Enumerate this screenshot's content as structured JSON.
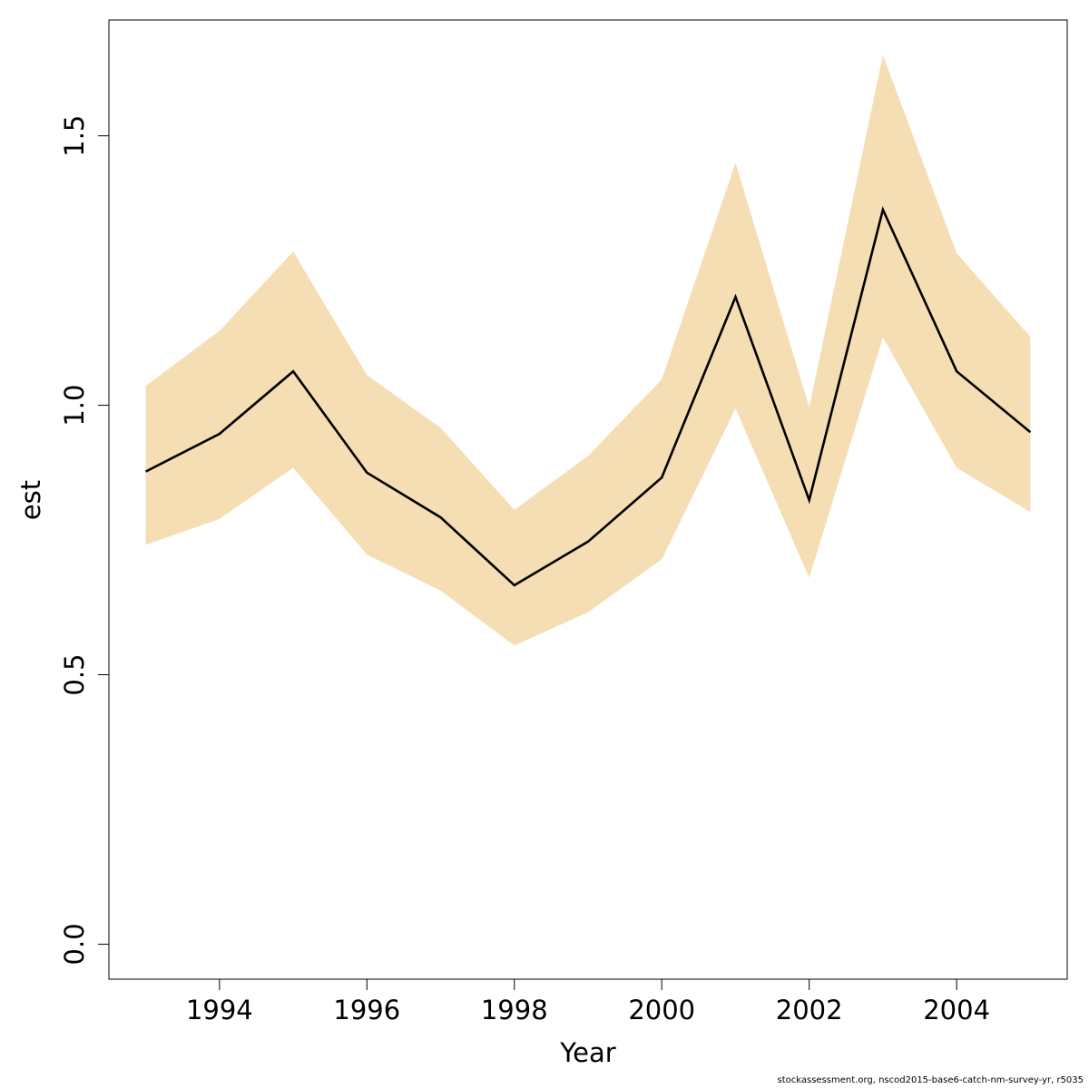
{
  "chart_data": {
    "type": "line",
    "xlabel": "Year",
    "ylabel": "est",
    "xlim": [
      1992.5,
      2005.5
    ],
    "ylim": [
      -0.065,
      1.715
    ],
    "x_ticks": [
      1994,
      1996,
      1998,
      2000,
      2002,
      2004
    ],
    "x_tick_labels": [
      "1994",
      "1996",
      "1998",
      "2000",
      "2002",
      "2004"
    ],
    "y_ticks": [
      0.0,
      0.5,
      1.0,
      1.5
    ],
    "y_tick_labels": [
      "0.0",
      "0.5",
      "1.0",
      "1.5"
    ],
    "grid": false,
    "x": [
      1993,
      1994,
      1995,
      1996,
      1997,
      1998,
      1999,
      2000,
      2001,
      2002,
      2003,
      2004,
      2005
    ],
    "series": [
      {
        "values": [
          0.877,
          0.947,
          1.063,
          0.875,
          0.792,
          0.666,
          0.747,
          0.866,
          1.201,
          0.824,
          1.363,
          1.063,
          0.95
        ]
      }
    ],
    "band": {
      "lower": [
        0.741,
        0.789,
        0.884,
        0.723,
        0.656,
        0.554,
        0.616,
        0.714,
        0.994,
        0.68,
        1.126,
        0.884,
        0.802
      ],
      "upper": [
        1.036,
        1.138,
        1.285,
        1.056,
        0.958,
        0.806,
        0.906,
        1.048,
        1.45,
        0.996,
        1.65,
        1.282,
        1.127
      ]
    },
    "colors": {
      "band": "#f5deb3",
      "line": "#000000",
      "axis": "#000000"
    }
  },
  "footnote": "stockassessment.org, nscod2015-base6-catch-nm-survey-yr, r5035"
}
